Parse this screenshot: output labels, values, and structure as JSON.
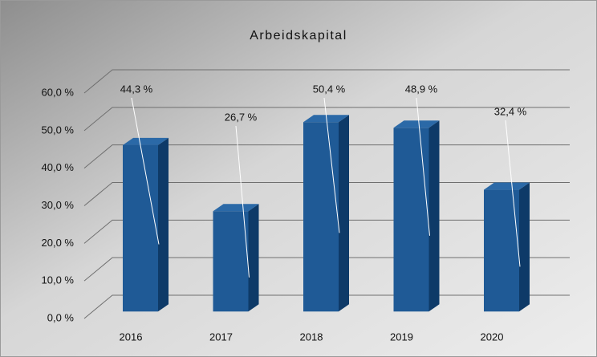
{
  "chart_data": {
    "type": "bar3d",
    "title": "Arbeidskapital",
    "categories": [
      "2016",
      "2017",
      "2018",
      "2019",
      "2020"
    ],
    "values": [
      44.3,
      26.7,
      50.4,
      48.9,
      32.4
    ],
    "value_labels": [
      "44,3 %",
      "26,7 %",
      "50,4 %",
      "48,9 %",
      "32,4 %"
    ],
    "color": "#1f5a96",
    "ylim": [
      0,
      60
    ],
    "yticks": [
      {
        "value": 0,
        "label": "0,0 %"
      },
      {
        "value": 10,
        "label": "10,0 %"
      },
      {
        "value": 20,
        "label": "20,0 %"
      },
      {
        "value": 30,
        "label": "30,0 %"
      },
      {
        "value": 40,
        "label": "40,0 %"
      },
      {
        "value": 50,
        "label": "50,0 %"
      },
      {
        "value": 60,
        "label": "60,0 %"
      }
    ],
    "grid": true
  }
}
